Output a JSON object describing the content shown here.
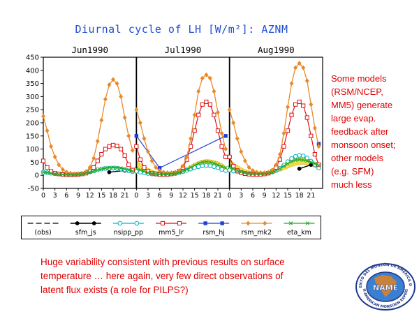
{
  "chart_data": {
    "type": "line",
    "title": "Diurnal cycle of LH [W/m²]: AZNM",
    "panels": [
      "Jun1990",
      "Jul1990",
      "Aug1990"
    ],
    "x_ticks": [
      "0",
      "3",
      "6",
      "9",
      "12",
      "15",
      "18",
      "21"
    ],
    "x_hours": [
      0,
      1,
      2,
      3,
      4,
      5,
      6,
      7,
      8,
      9,
      10,
      11,
      12,
      13,
      14,
      15,
      16,
      17,
      18,
      19,
      20,
      21,
      22,
      23
    ],
    "ylim": [
      -50,
      450
    ],
    "y_ticks": [
      -50,
      0,
      50,
      100,
      150,
      200,
      250,
      300,
      350,
      400,
      450
    ],
    "series": [
      {
        "name": "(obs)",
        "color": "#000000",
        "marker": "none",
        "dash": "8,4",
        "width": 1.2,
        "values": [
          [
            null,
            null,
            null,
            null,
            null,
            null,
            null,
            null,
            null,
            null,
            null,
            null,
            null,
            null,
            null,
            null,
            null,
            null,
            null,
            null,
            null,
            null,
            null,
            null
          ],
          [
            null,
            null,
            null,
            null,
            null,
            null,
            null,
            null,
            null,
            null,
            null,
            null,
            null,
            null,
            null,
            null,
            null,
            null,
            null,
            null,
            null,
            null,
            null,
            null
          ],
          [
            null,
            null,
            null,
            null,
            null,
            null,
            null,
            null,
            null,
            null,
            null,
            null,
            null,
            null,
            null,
            null,
            null,
            null,
            null,
            null,
            null,
            null,
            null,
            null
          ]
        ]
      },
      {
        "name": "sfm_js",
        "color": "#000000",
        "marker": "dot",
        "width": 1.4,
        "values": [
          [
            null,
            null,
            null,
            null,
            null,
            null,
            null,
            null,
            null,
            null,
            null,
            null,
            null,
            null,
            null,
            null,
            null,
            12,
            null,
            null,
            null,
            18,
            null,
            null
          ],
          [
            null,
            null,
            null,
            null,
            null,
            null,
            null,
            null,
            null,
            null,
            null,
            null,
            null,
            null,
            null,
            null,
            null,
            null,
            null,
            null,
            null,
            null,
            null,
            null
          ],
          [
            null,
            null,
            null,
            null,
            null,
            null,
            null,
            null,
            null,
            null,
            null,
            null,
            null,
            null,
            null,
            null,
            null,
            null,
            25,
            null,
            null,
            40,
            null,
            null
          ]
        ]
      },
      {
        "name": "nsipp_pp",
        "color": "#00b5c8",
        "marker": "circle",
        "width": 1.2,
        "values": [
          [
            12,
            10,
            8,
            6,
            5,
            4,
            3,
            3,
            3,
            4,
            6,
            9,
            13,
            17,
            21,
            24,
            26,
            27,
            27,
            26,
            24,
            21,
            17,
            14
          ],
          [
            15,
            12,
            9,
            7,
            5,
            4,
            4,
            4,
            4,
            5,
            7,
            10,
            14,
            19,
            24,
            29,
            33,
            36,
            37,
            36,
            33,
            28,
            22,
            18
          ],
          [
            20,
            16,
            13,
            10,
            8,
            6,
            5,
            5,
            5,
            6,
            8,
            12,
            18,
            27,
            39,
            52,
            64,
            72,
            76,
            74,
            66,
            54,
            40,
            28
          ]
        ]
      },
      {
        "name": "mm5_lr",
        "color": "#dd1111",
        "marker": "square",
        "width": 1.2,
        "values": [
          [
            55,
            30,
            15,
            8,
            5,
            3,
            2,
            2,
            2,
            3,
            5,
            8,
            15,
            30,
            55,
            80,
            100,
            110,
            115,
            112,
            100,
            75,
            40,
            20
          ],
          [
            110,
            60,
            30,
            15,
            8,
            5,
            3,
            3,
            3,
            5,
            8,
            15,
            30,
            60,
            110,
            170,
            230,
            270,
            280,
            270,
            230,
            170,
            110,
            70
          ],
          [
            70,
            35,
            18,
            10,
            6,
            4,
            3,
            3,
            3,
            5,
            8,
            15,
            30,
            60,
            110,
            170,
            230,
            270,
            280,
            265,
            220,
            150,
            80,
            40
          ]
        ]
      },
      {
        "name": "rsm_hj",
        "color": "#1f3fd6",
        "marker": "bluesq",
        "width": 1.2,
        "values": [
          [
            null,
            null,
            null,
            null,
            null,
            null,
            null,
            null,
            null,
            null,
            null,
            null,
            null,
            null,
            null,
            null,
            null,
            null,
            null,
            null,
            null,
            null,
            null,
            null
          ],
          [
            150,
            null,
            null,
            null,
            null,
            null,
            28,
            null,
            null,
            null,
            null,
            null,
            null,
            null,
            null,
            null,
            null,
            null,
            null,
            null,
            null,
            null,
            null,
            150
          ],
          [
            null,
            null,
            null,
            null,
            null,
            null,
            null,
            null,
            null,
            null,
            null,
            null,
            null,
            null,
            null,
            null,
            null,
            null,
            null,
            null,
            null,
            null,
            null,
            120
          ]
        ]
      },
      {
        "name": "rsm_mk2",
        "color": "#e88a2a",
        "marker": "diamond",
        "width": 1.3,
        "values": [
          [
            225,
            170,
            110,
            70,
            40,
            22,
            12,
            8,
            6,
            6,
            8,
            14,
            30,
            65,
            130,
            210,
            290,
            345,
            365,
            350,
            300,
            220,
            150,
            95
          ],
          [
            250,
            200,
            140,
            90,
            55,
            30,
            18,
            12,
            10,
            10,
            12,
            18,
            35,
            70,
            140,
            230,
            320,
            370,
            383,
            370,
            320,
            240,
            160,
            100
          ],
          [
            250,
            200,
            140,
            90,
            55,
            30,
            18,
            12,
            10,
            10,
            12,
            20,
            40,
            80,
            160,
            260,
            350,
            410,
            427,
            410,
            360,
            270,
            180,
            110
          ]
        ]
      },
      {
        "name": "eta_km",
        "color": "#22aa22",
        "marker": "x",
        "width": 1.3,
        "values": [
          [
            12,
            10,
            8,
            6,
            4,
            3,
            2,
            2,
            2,
            3,
            5,
            8,
            12,
            16,
            20,
            24,
            27,
            29,
            30,
            29,
            27,
            24,
            20,
            16
          ],
          [
            25,
            20,
            15,
            10,
            7,
            5,
            4,
            4,
            4,
            5,
            7,
            10,
            15,
            22,
            30,
            38,
            45,
            50,
            52,
            50,
            46,
            40,
            34,
            28
          ],
          [
            30,
            24,
            18,
            13,
            9,
            6,
            5,
            5,
            5,
            6,
            8,
            12,
            18,
            26,
            35,
            44,
            52,
            58,
            60,
            58,
            55,
            50,
            44,
            38
          ]
        ]
      }
    ],
    "obs_band": {
      "color": "#f2d22a",
      "lower": [
        [
          null,
          null,
          null,
          null,
          null,
          null,
          null,
          null,
          null,
          null,
          null,
          null,
          null,
          null,
          null,
          null,
          null,
          null,
          null,
          null,
          null,
          null,
          null,
          null
        ],
        [
          15,
          12,
          9,
          7,
          5,
          4,
          3,
          3,
          3,
          3,
          4,
          6,
          9,
          13,
          18,
          23,
          28,
          32,
          35,
          36,
          35,
          32,
          27,
          20
        ],
        [
          15,
          12,
          9,
          7,
          5,
          4,
          3,
          3,
          3,
          3,
          4,
          6,
          10,
          15,
          21,
          27,
          33,
          38,
          41,
          42,
          40,
          36,
          30,
          22
        ]
      ],
      "upper": [
        [
          null,
          null,
          null,
          null,
          null,
          null,
          null,
          null,
          null,
          null,
          null,
          null,
          null,
          null,
          null,
          null,
          null,
          null,
          null,
          null,
          null,
          null,
          null,
          null
        ],
        [
          55,
          45,
          35,
          27,
          20,
          15,
          12,
          10,
          9,
          10,
          12,
          16,
          22,
          30,
          38,
          46,
          53,
          58,
          60,
          59,
          56,
          52,
          45,
          35
        ],
        [
          60,
          48,
          38,
          29,
          22,
          17,
          13,
          11,
          10,
          11,
          13,
          17,
          24,
          33,
          42,
          51,
          58,
          64,
          67,
          66,
          63,
          58,
          50,
          40
        ]
      ]
    }
  },
  "side_note": [
    "Some models",
    "(RSM/NCEP,",
    "MM5) generate",
    "large evap.",
    "feedback after",
    "monsoon onset;",
    "other models",
    "(e.g. SFM)",
    "much less"
  ],
  "bottom_note": [
    "Huge variability consistent with previous results on surface",
    "temperature … here again, very few direct observations of",
    "latent flux exists (a role for PILPS?)"
  ],
  "logo": {
    "ring_top": "EXPERIMENTO DEL MONZÓN DE AMÉRICA DEL NORTE",
    "ring_bottom": "NORTH AMERICAN MONSOON EXPERIMENT",
    "wordmark": "NAME",
    "colors": {
      "ring": "#1f3a8a",
      "land": "#c8823a",
      "sea": "#3a7fd0"
    }
  }
}
